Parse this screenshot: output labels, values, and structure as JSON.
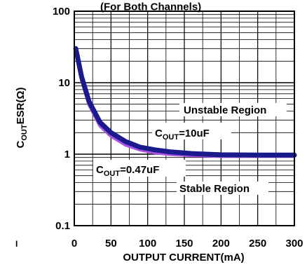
{
  "chart_data": {
    "type": "line",
    "title": "(For Both Channels)",
    "xlabel": "OUTPUT CURRENT(mA)",
    "ylabel": {
      "main": "C",
      "sub": "OUT",
      "rest": "ESR(Ω)"
    },
    "x_scale": "linear",
    "y_scale": "log",
    "xlim": [
      0,
      300
    ],
    "ylim": [
      0.1,
      100
    ],
    "x_ticks": [
      "0",
      "50",
      "100",
      "150",
      "200",
      "250",
      "300"
    ],
    "y_ticks": [
      "0.1",
      "1",
      "10",
      "100"
    ],
    "grid": true,
    "series": [
      {
        "name": {
          "main": "C",
          "sub": "OUT",
          "rest": "=10uF"
        },
        "color": "#1a1a8c",
        "x": [
          2,
          10,
          20,
          35,
          50,
          70,
          90,
          110,
          130,
          160,
          200,
          250,
          300
        ],
        "y": [
          30,
          12,
          5.5,
          2.8,
          2.0,
          1.5,
          1.25,
          1.15,
          1.08,
          1.02,
          0.98,
          0.97,
          0.97
        ]
      },
      {
        "name": {
          "main": "C",
          "sub": "OUT",
          "rest": "=0.47uF"
        },
        "color": "#a855e6",
        "x": [
          2,
          10,
          20,
          35,
          50,
          70,
          90,
          110,
          130,
          160,
          200,
          250,
          300
        ],
        "y": [
          28,
          11,
          5.0,
          2.5,
          1.8,
          1.35,
          1.15,
          1.05,
          1.0,
          0.96,
          0.94,
          0.94,
          0.94
        ]
      }
    ],
    "annotations": [
      "Unstable Region",
      "Stable Region"
    ],
    "page_note": "I"
  }
}
